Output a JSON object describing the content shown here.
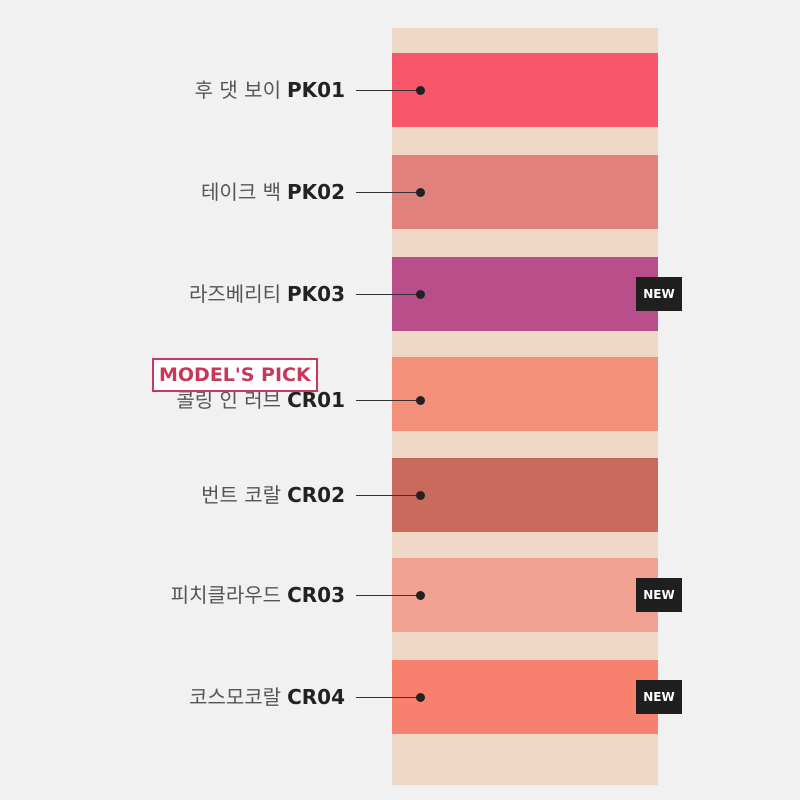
{
  "shades": [
    {
      "name": "후 댓 보이",
      "code": "PK01",
      "color": "#f8566a",
      "is_new": false
    },
    {
      "name": "테이크 백",
      "code": "PK02",
      "color": "#e0817b",
      "is_new": false
    },
    {
      "name": "라즈베리티",
      "code": "PK03",
      "color": "#b94f8a",
      "is_new": true
    },
    {
      "name": "콜링 인 러브",
      "code": "CR01",
      "color": "#f2907a",
      "is_new": false
    },
    {
      "name": "번트 코랄",
      "code": "CR02",
      "color": "#c86a5c",
      "is_new": false
    },
    {
      "name": "피치클라우드",
      "code": "CR03",
      "color": "#f1a292",
      "is_new": true
    },
    {
      "name": "코스모코랄",
      "code": "CR04",
      "color": "#f8806f",
      "is_new": true
    }
  ],
  "badge_new": "NEW",
  "model_pick": "MODEL'S PICK"
}
